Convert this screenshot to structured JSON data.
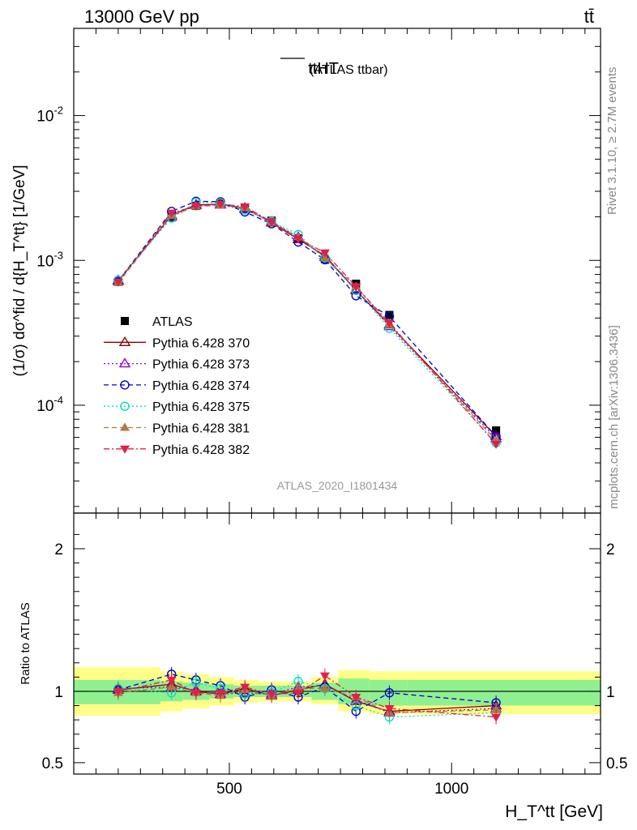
{
  "header": {
    "left": "13000 GeV pp",
    "right": "tt̄"
  },
  "side_labels": {
    "rivet": "Rivet 3.1.10, ≥ 2.7M events",
    "mcplots": "mcplots.cern.ch [arXiv:1306.3436]"
  },
  "chart_data": [
    {
      "type": "line",
      "panel": "main",
      "title": "ttHT",
      "title_suffix": "(ATLAS ttbar)",
      "watermark": "ATLAS_2020_I1801434",
      "ylabel": "dσ/d{H_T^tt} [1/GeV]",
      "ylabel_full": "(1/σ) dσ^fid / d{H_T^tt} [1/GeV]",
      "yscale": "log",
      "xlim": [
        150,
        1335
      ],
      "ylim": [
        1.8e-05,
        0.04
      ],
      "y_tick_labels": [
        "10^-4",
        "10^-3",
        "10^-2"
      ],
      "legend_position": "left-middle",
      "x": [
        250,
        370,
        425,
        480,
        535,
        595,
        655,
        715,
        785,
        860,
        1100
      ],
      "series": [
        {
          "name": "ATLAS",
          "color": "#000000",
          "marker": "square-filled",
          "line": "none",
          "values": [
            0.00071,
            0.00198,
            0.00238,
            0.00247,
            0.00228,
            0.00188,
            0.00142,
            0.00102,
            0.00069,
            0.00042,
            6.7e-05
          ]
        },
        {
          "name": "Pythia 6.428 370",
          "color": "#8b0000",
          "marker": "triangle-up-open",
          "line": "solid",
          "values": [
            0.00072,
            0.00205,
            0.00242,
            0.00244,
            0.0023,
            0.00182,
            0.0014,
            0.00108,
            0.00062,
            0.00036,
            6.1e-05
          ]
        },
        {
          "name": "Pythia 6.428 373",
          "color": "#9400d3",
          "marker": "triangle-up-open",
          "line": "dotted",
          "values": [
            0.00073,
            0.002,
            0.0024,
            0.00242,
            0.00225,
            0.00185,
            0.00145,
            0.00105,
            0.00063,
            0.00035,
            5.9e-05
          ]
        },
        {
          "name": "Pythia 6.428 374",
          "color": "#0000cd",
          "marker": "circle-open",
          "line": "dashed",
          "values": [
            0.00072,
            0.00218,
            0.00256,
            0.00254,
            0.00216,
            0.00179,
            0.00134,
            0.00101,
            0.00057,
            0.00041,
            6.1e-05
          ]
        },
        {
          "name": "Pythia 6.428 375",
          "color": "#00e0c0",
          "marker": "circle-open",
          "line": "dotted",
          "values": [
            0.00073,
            0.00196,
            0.00252,
            0.0025,
            0.00223,
            0.00186,
            0.00151,
            0.00104,
            0.00062,
            0.00034,
            5.5e-05
          ]
        },
        {
          "name": "Pythia 6.428 381",
          "color": "#b07840",
          "marker": "triangle-up-filled",
          "line": "dashed",
          "values": [
            0.0007,
            0.00204,
            0.00236,
            0.0024,
            0.0023,
            0.00183,
            0.00145,
            0.00104,
            0.00066,
            0.00036,
            5.7e-05
          ]
        },
        {
          "name": "Pythia 6.428 382",
          "color": "#e0204a",
          "marker": "triangle-down-filled",
          "line": "dashdot",
          "values": [
            0.00071,
            0.00213,
            0.00237,
            0.00245,
            0.00235,
            0.00185,
            0.00141,
            0.00113,
            0.00066,
            0.00037,
            5.4e-05
          ]
        }
      ]
    },
    {
      "type": "line",
      "panel": "ratio",
      "ylabel": "Ratio to ATLAS",
      "xlabel": "H_T^tt [GeV]",
      "xlim": [
        150,
        1335
      ],
      "ylim": [
        0.42,
        2.25
      ],
      "x_ticks": [
        500,
        1000
      ],
      "y_ticks": [
        0.5,
        1,
        2
      ],
      "x": [
        250,
        370,
        425,
        480,
        535,
        595,
        655,
        715,
        785,
        860,
        1100
      ],
      "bins": [
        150,
        345,
        395,
        455,
        510,
        565,
        625,
        685,
        745,
        815,
        900,
        1335
      ],
      "band_yellow": [
        [
          0.83,
          1.17
        ],
        [
          0.86,
          1.14
        ],
        [
          0.88,
          1.12
        ],
        [
          0.9,
          1.1
        ],
        [
          0.92,
          1.08
        ],
        [
          0.93,
          1.07
        ],
        [
          0.93,
          1.07
        ],
        [
          0.91,
          1.1
        ],
        [
          0.86,
          1.15
        ],
        [
          0.84,
          1.14
        ],
        [
          0.84,
          1.14
        ]
      ],
      "band_green": [
        [
          0.91,
          1.08
        ],
        [
          0.93,
          1.07
        ],
        [
          0.94,
          1.06
        ],
        [
          0.95,
          1.05
        ],
        [
          0.96,
          1.04
        ],
        [
          0.96,
          1.04
        ],
        [
          0.96,
          1.04
        ],
        [
          0.94,
          1.06
        ],
        [
          0.91,
          1.09
        ],
        [
          0.9,
          1.08
        ],
        [
          0.9,
          1.08
        ]
      ],
      "series": [
        {
          "name": "Pythia 6.428 370",
          "values": [
            1.01,
            1.05,
            1.0,
            0.98,
            1.02,
            0.97,
            1.01,
            1.05,
            0.93,
            0.86,
            0.9
          ]
        },
        {
          "name": "Pythia 6.428 373",
          "values": [
            1.02,
            1.03,
            1.01,
            0.98,
            0.99,
            0.98,
            1.03,
            1.04,
            0.94,
            0.85,
            0.88
          ]
        },
        {
          "name": "Pythia 6.428 374",
          "values": [
            1.01,
            1.12,
            1.08,
            1.04,
            0.96,
            1.01,
            0.96,
            1.03,
            0.86,
            0.99,
            0.92
          ]
        },
        {
          "name": "Pythia 6.428 375",
          "values": [
            1.02,
            0.99,
            1.06,
            1.02,
            0.98,
            0.99,
            1.07,
            1.02,
            0.9,
            0.82,
            0.85
          ]
        },
        {
          "name": "Pythia 6.428 381",
          "values": [
            0.99,
            1.03,
            0.99,
            0.97,
            1.01,
            0.97,
            1.02,
            1.02,
            0.96,
            0.85,
            0.87
          ]
        },
        {
          "name": "Pythia 6.428 382",
          "values": [
            1.0,
            1.08,
            0.99,
            0.99,
            1.03,
            0.98,
            0.99,
            1.11,
            0.96,
            0.88,
            0.82
          ]
        }
      ]
    }
  ]
}
